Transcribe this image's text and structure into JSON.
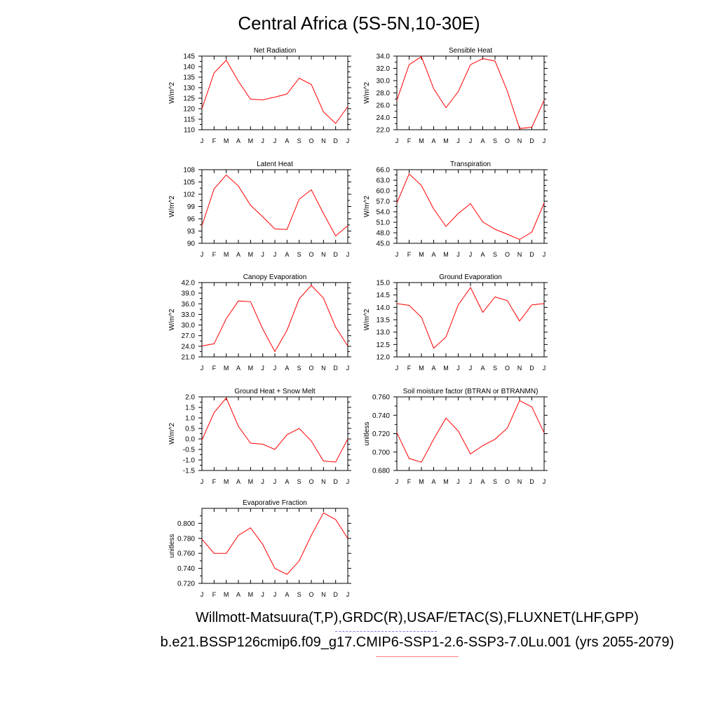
{
  "title": "Central Africa (5S-5N,10-30E)",
  "footer": {
    "datasets": "Willmott-Matsuura(T,P),GRDC(R),USAF/ETAC(S),FLUXNET(LHF,GPP)",
    "case": "b.e21.BSSP126cmip6.f09_g17.CMIP6-SSP1-2.6-SSP3-7.0Lu.001 (yrs 2055-2079)"
  },
  "colors": {
    "line": "#ff0000",
    "legend_dash": "#8080e0",
    "legend_solid": "#ff8080"
  },
  "chart_data": [
    {
      "type": "line",
      "title": "Net Radiation",
      "ylabel": "W/m^2",
      "categories": [
        "J",
        "F",
        "M",
        "A",
        "M",
        "J",
        "J",
        "A",
        "S",
        "O",
        "N",
        "D",
        "J"
      ],
      "ylim": [
        110,
        145
      ],
      "yticks": [
        110,
        115,
        120,
        125,
        130,
        135,
        140,
        145
      ],
      "ytick_labels": [
        "110",
        "115",
        "120",
        "125",
        "130",
        "135",
        "140",
        "145"
      ],
      "values": [
        120,
        137,
        143,
        133,
        124.5,
        124.2,
        125.5,
        127,
        134.5,
        131.5,
        118.5,
        113,
        121
      ]
    },
    {
      "type": "line",
      "title": "Sensible Heat",
      "ylabel": "W/m^2",
      "categories": [
        "J",
        "F",
        "M",
        "A",
        "M",
        "J",
        "J",
        "A",
        "S",
        "O",
        "N",
        "D",
        "J"
      ],
      "ylim": [
        22,
        34
      ],
      "yticks": [
        22,
        24,
        26,
        28,
        30,
        32,
        34
      ],
      "ytick_labels": [
        "22.0",
        "24.0",
        "26.0",
        "28.0",
        "30.0",
        "32.0",
        "34.0"
      ],
      "values": [
        26.8,
        32.6,
        33.9,
        28.7,
        25.6,
        28.2,
        32.6,
        33.6,
        33.2,
        28.3,
        22.2,
        22.4,
        26.8
      ]
    },
    {
      "type": "line",
      "title": "Latent Heat",
      "ylabel": "W/m^2",
      "categories": [
        "J",
        "F",
        "M",
        "A",
        "M",
        "J",
        "J",
        "A",
        "S",
        "O",
        "N",
        "D",
        "J"
      ],
      "ylim": [
        90,
        108
      ],
      "yticks": [
        90,
        93,
        96,
        99,
        102,
        105,
        108
      ],
      "ytick_labels": [
        "90",
        "93",
        "96",
        "99",
        "102",
        "105",
        "108"
      ],
      "values": [
        94.3,
        103.3,
        106.7,
        104,
        99.3,
        96.5,
        93.5,
        93.4,
        100.8,
        103.1,
        97.3,
        91.8,
        94.3
      ]
    },
    {
      "type": "line",
      "title": "Transpiration",
      "ylabel": "W/m^2",
      "categories": [
        "J",
        "F",
        "M",
        "A",
        "M",
        "J",
        "J",
        "A",
        "S",
        "O",
        "N",
        "D",
        "J"
      ],
      "ylim": [
        45,
        66
      ],
      "yticks": [
        45,
        48,
        51,
        54,
        57,
        60,
        63,
        66
      ],
      "ytick_labels": [
        "45.0",
        "48.0",
        "51.0",
        "54.0",
        "57.0",
        "60.0",
        "63.0",
        "66.0"
      ],
      "values": [
        56.5,
        64.8,
        61.5,
        54.8,
        49.8,
        53.5,
        56.3,
        51.1,
        49,
        47.6,
        46.1,
        48.2,
        56.5
      ]
    },
    {
      "type": "line",
      "title": "Canopy Evaporation",
      "ylabel": "W/m^2",
      "categories": [
        "J",
        "F",
        "M",
        "A",
        "M",
        "J",
        "J",
        "A",
        "S",
        "O",
        "N",
        "D",
        "J"
      ],
      "ylim": [
        21,
        42
      ],
      "yticks": [
        21,
        24,
        27,
        30,
        33,
        36,
        39,
        42
      ],
      "ytick_labels": [
        "21.0",
        "24.0",
        "27.0",
        "30.0",
        "33.0",
        "36.0",
        "39.0",
        "42.0"
      ],
      "values": [
        24.1,
        24.7,
        31.8,
        36.8,
        36.6,
        28.9,
        22.5,
        28.5,
        37.4,
        41.2,
        37.6,
        29.4,
        24.1
      ]
    },
    {
      "type": "line",
      "title": "Ground Evaporation",
      "ylabel": "W/m^2",
      "categories": [
        "J",
        "F",
        "M",
        "A",
        "M",
        "J",
        "J",
        "A",
        "S",
        "O",
        "N",
        "D",
        "J"
      ],
      "ylim": [
        12,
        15
      ],
      "yticks": [
        12,
        12.5,
        13,
        13.5,
        14,
        14.5,
        15
      ],
      "ytick_labels": [
        "12.0",
        "12.5",
        "13.0",
        "13.5",
        "14.0",
        "14.5",
        "15.0"
      ],
      "values": [
        14.15,
        14.08,
        13.6,
        12.35,
        12.8,
        14.1,
        14.8,
        13.8,
        14.42,
        14.27,
        13.45,
        14.1,
        14.15
      ]
    },
    {
      "type": "line",
      "title": "Ground Heat + Snow Melt",
      "ylabel": "W/m^2",
      "categories": [
        "J",
        "F",
        "M",
        "A",
        "M",
        "J",
        "J",
        "A",
        "S",
        "O",
        "N",
        "D",
        "J"
      ],
      "ylim": [
        -1.5,
        2
      ],
      "yticks": [
        -1.5,
        -1,
        -0.5,
        0,
        0.5,
        1,
        1.5,
        2
      ],
      "ytick_labels": [
        "-1.5",
        "-1.0",
        "-0.5",
        "0.0",
        "0.5",
        "1.0",
        "1.5",
        "2.0"
      ],
      "values": [
        -0.05,
        1.25,
        1.95,
        0.6,
        -0.2,
        -0.25,
        -0.5,
        0.2,
        0.5,
        -0.1,
        -1.05,
        -1.1,
        0
      ]
    },
    {
      "type": "line",
      "title": "Soil moisture factor (BTRAN or BTRANMN)",
      "ylabel": "unitless",
      "categories": [
        "J",
        "F",
        "M",
        "A",
        "M",
        "J",
        "J",
        "A",
        "S",
        "O",
        "N",
        "D",
        "J"
      ],
      "ylim": [
        0.68,
        0.76
      ],
      "yticks": [
        0.68,
        0.7,
        0.72,
        0.74,
        0.76
      ],
      "ytick_labels": [
        "0.680",
        "0.700",
        "0.720",
        "0.740",
        "0.760"
      ],
      "values": [
        0.721,
        0.693,
        0.689,
        0.714,
        0.737,
        0.723,
        0.698,
        0.707,
        0.714,
        0.726,
        0.756,
        0.749,
        0.721
      ]
    },
    {
      "type": "line",
      "title": "Evaporative Fraction",
      "ylabel": "unitless",
      "categories": [
        "J",
        "F",
        "M",
        "A",
        "M",
        "J",
        "J",
        "A",
        "S",
        "O",
        "N",
        "D",
        "J"
      ],
      "ylim": [
        0.72,
        0.82
      ],
      "yticks": [
        0.72,
        0.74,
        0.76,
        0.78,
        0.8
      ],
      "ytick_labels": [
        "0.720",
        "0.740",
        "0.760",
        "0.780",
        "0.800"
      ],
      "values": [
        0.779,
        0.76,
        0.76,
        0.784,
        0.794,
        0.772,
        0.74,
        0.732,
        0.75,
        0.784,
        0.814,
        0.805,
        0.78
      ]
    }
  ]
}
